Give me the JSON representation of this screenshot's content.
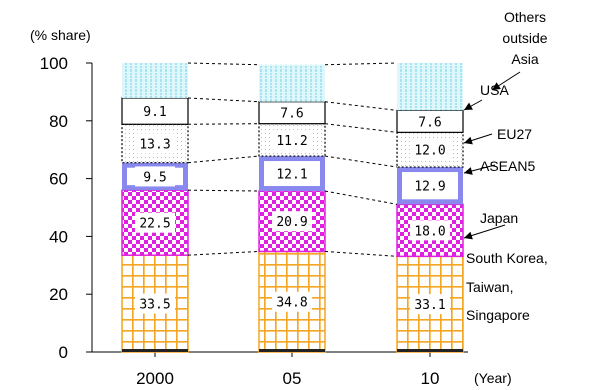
{
  "chart_data": {
    "type": "bar",
    "stacked": true,
    "ylabel": "(% share)",
    "xunit": "(Year)",
    "ylim": [
      0,
      100
    ],
    "yticks": [
      0,
      20,
      40,
      60,
      80,
      100
    ],
    "categories": [
      "2000",
      "05",
      "10"
    ],
    "series": [
      {
        "name": "South Korea, Taiwan, Singapore",
        "legend_lines": [
          "South Korea,",
          "Taiwan,",
          "Singapore"
        ],
        "values": [
          33.5,
          34.8,
          33.1
        ],
        "labels": [
          "33.5",
          "34.8",
          "33.1"
        ],
        "pattern": "orange-grid",
        "color": "#f5a623"
      },
      {
        "name": "Japan",
        "legend_lines": [
          "Japan"
        ],
        "values": [
          22.5,
          20.9,
          18.0
        ],
        "labels": [
          "22.5",
          "20.9",
          "18.0"
        ],
        "pattern": "magenta-checker",
        "color": "#e020e0"
      },
      {
        "name": "ASEAN5",
        "legend_lines": [
          "ASEAN5"
        ],
        "values": [
          9.5,
          12.1,
          12.9
        ],
        "labels": [
          "9.5",
          "12.1",
          "12.9"
        ],
        "pattern": "blue-frame",
        "color": "#8888ee"
      },
      {
        "name": "EU27",
        "legend_lines": [
          "EU27"
        ],
        "values": [
          13.3,
          11.2,
          12.0
        ],
        "labels": [
          "13.3",
          "11.2",
          "12.0"
        ],
        "pattern": "dotted",
        "color": "#000000"
      },
      {
        "name": "USA",
        "legend_lines": [
          "USA"
        ],
        "values": [
          9.1,
          7.6,
          7.6
        ],
        "labels": [
          "9.1",
          "7.6",
          "7.6"
        ],
        "pattern": "plain",
        "color": "#000000"
      },
      {
        "name": "Others outside Asia",
        "legend_lines": [
          "Others",
          "outside",
          "Asia"
        ],
        "values": [
          12.1,
          12.8,
          16.4
        ],
        "labels": [
          "",
          "",
          ""
        ],
        "pattern": "cyan-stripes",
        "color": "#7fd8e8"
      }
    ],
    "grid": false,
    "legend": "right, with arrows"
  }
}
